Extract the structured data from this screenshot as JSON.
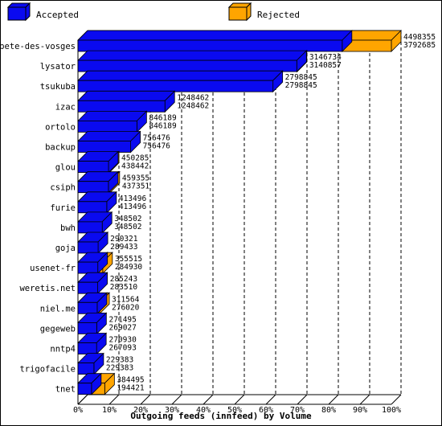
{
  "chart_data": {
    "type": "bar",
    "orientation": "horizontal",
    "style": "3d",
    "xlabel": "Outgoing feeds (innfeed) by Volume",
    "ylabel": "",
    "xlim": [
      0,
      100
    ],
    "x_ticks": [
      "0%",
      "10%",
      "20%",
      "30%",
      "40%",
      "50%",
      "60%",
      "70%",
      "80%",
      "90%",
      "100%"
    ],
    "grid": true,
    "legend_position": "top",
    "series": [
      {
        "name": "Accepted",
        "color": "#0a0af0",
        "role": "accepted"
      },
      {
        "name": "Rejected",
        "color": "#ffa500",
        "role": "rejected"
      }
    ],
    "categories": [
      "bete-des-vosges",
      "lysator",
      "tsukuba",
      "izac",
      "ortolo",
      "backup",
      "glou",
      "csiph",
      "furie",
      "bwh",
      "goja",
      "usenet-fr",
      "weretis.net",
      "niel.me",
      "gegeweb",
      "nntp4",
      "trigofacile",
      "tnet"
    ],
    "total_values": [
      "4498355",
      "3146734",
      "2798845",
      "1248462",
      "846189",
      "756476",
      "450285",
      "459355",
      "413496",
      "348502",
      "290321",
      "355515",
      "285243",
      "311564",
      "271495",
      "270930",
      "229383",
      "384495"
    ],
    "accepted_values": [
      "3792685",
      "3140857",
      "2798845",
      "1248462",
      "846189",
      "756476",
      "438442",
      "437351",
      "413496",
      "348502",
      "289433",
      "284930",
      "283510",
      "276020",
      "269027",
      "267093",
      "229383",
      "194421"
    ]
  }
}
